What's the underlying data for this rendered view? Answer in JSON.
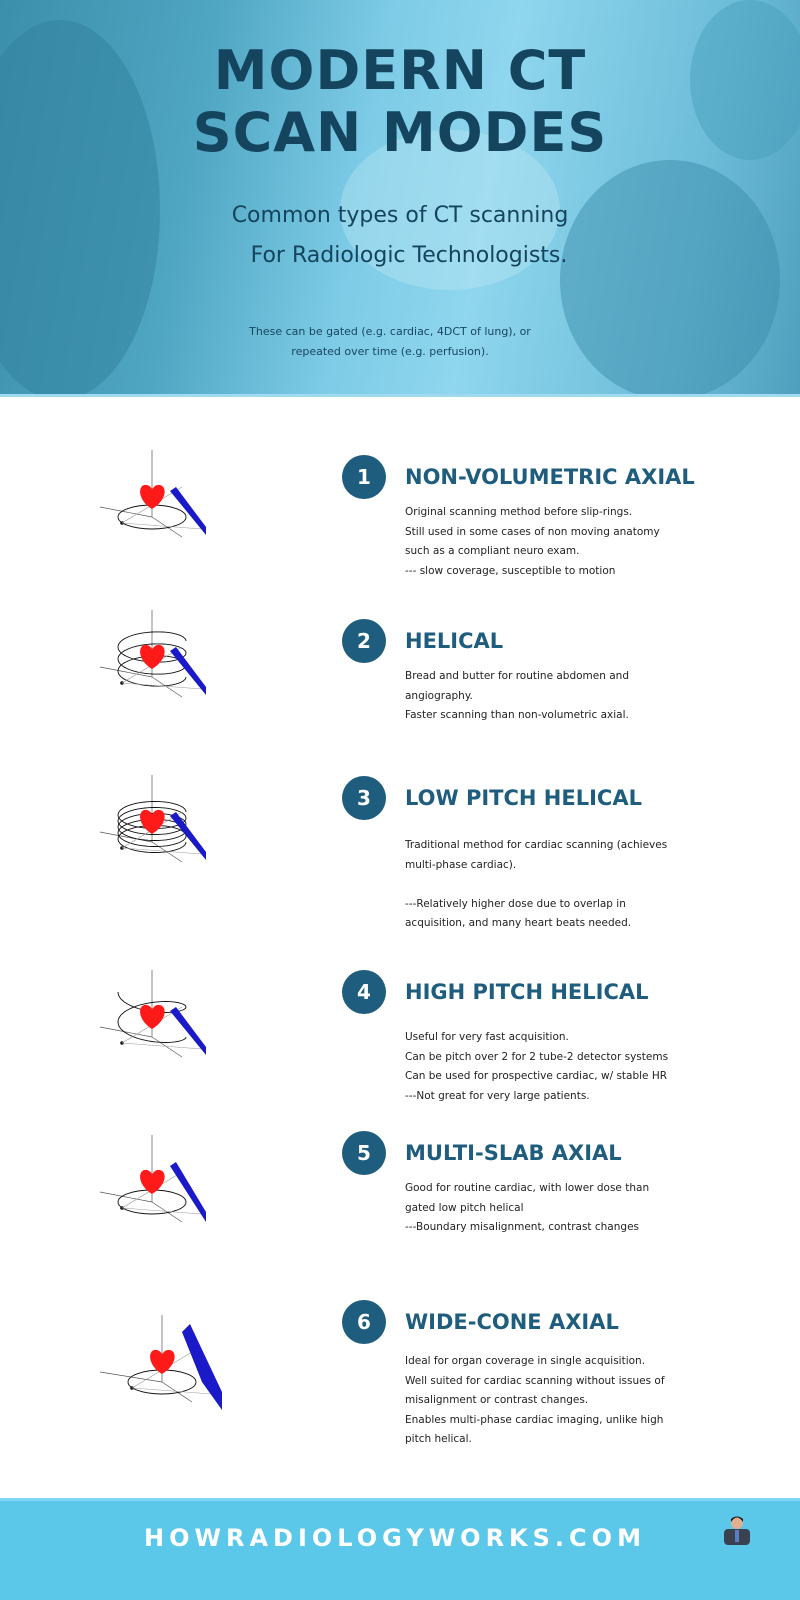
{
  "header": {
    "title_lines": [
      "MODERN CT",
      "SCAN MODES"
    ],
    "subtitle_lines": [
      "Common types of CT scanning",
      "For Radiologic Technologists."
    ],
    "note_lines": [
      "These can be gated (e.g. cardiac, 4DCT of lung), or",
      "repeated over time (e.g. perfusion)."
    ]
  },
  "colors": {
    "title": "#15445e",
    "accent": "#1f5d7e",
    "heart": "#ff1a1a",
    "detector": "#1a1ac8",
    "footer": "#5bc8ea"
  },
  "modes": [
    {
      "number": "1",
      "title": "NON-VOLUMETRIC AXIAL",
      "icon": "axial-scan-diagram",
      "lines": [
        "Original scanning method before slip-rings.",
        "Still used in some cases of non moving anatomy",
        "such as a compliant neuro exam.",
        "--- slow coverage, susceptible to motion"
      ]
    },
    {
      "number": "2",
      "title": "HELICAL",
      "icon": "helical-scan-diagram",
      "lines": [
        "Bread and butter for routine abdomen and",
        "angiography.",
        "Faster scanning than non-volumetric axial."
      ]
    },
    {
      "number": "3",
      "title": "LOW PITCH HELICAL",
      "icon": "low-pitch-helical-diagram",
      "lines": [
        "Traditional method for cardiac scanning (achieves",
        "multi-phase cardiac).",
        "",
        "---Relatively higher dose due to overlap in",
        "acquisition, and many heart beats needed."
      ]
    },
    {
      "number": "4",
      "title": "HIGH PITCH HELICAL",
      "icon": "high-pitch-helical-diagram",
      "lines": [
        "Useful for very fast acquisition.",
        "Can be pitch over 2 for 2 tube-2 detector systems",
        "Can be used for prospective cardiac, w/ stable HR",
        "---Not great for very large patients."
      ]
    },
    {
      "number": "5",
      "title": "MULTI-SLAB AXIAL",
      "icon": "multi-slab-axial-diagram",
      "lines": [
        "Good for routine cardiac, with lower dose than",
        "gated low pitch helical",
        "---Boundary misalignment, contrast changes"
      ]
    },
    {
      "number": "6",
      "title": "WIDE-CONE AXIAL",
      "icon": "wide-cone-axial-diagram",
      "lines": [
        "Ideal for organ coverage in single acquisition.",
        "Well suited for cardiac scanning without issues of",
        "misalignment or contrast changes.",
        "Enables multi-phase cardiac imaging, unlike high",
        "pitch helical."
      ]
    }
  ],
  "footer": {
    "site": "HOWRADIOLOGYWORKS.COM",
    "avatar": "author-avatar"
  }
}
